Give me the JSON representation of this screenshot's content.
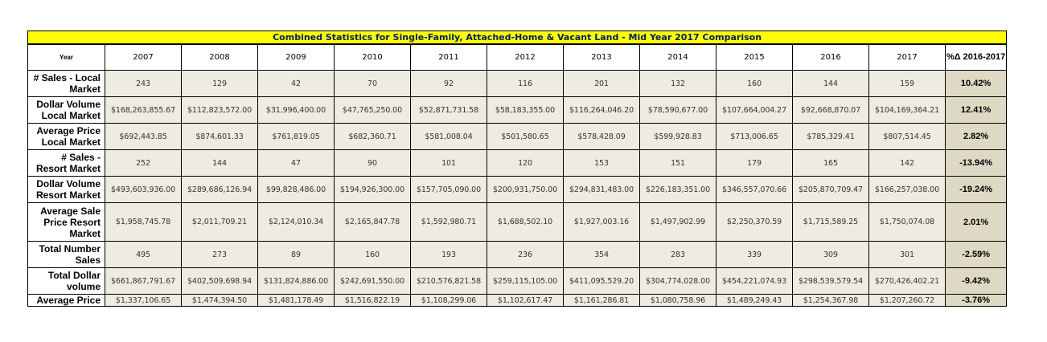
{
  "title": "Combined Statistics for Single-Family, Attached-Home & Vacant Land - Mid Year 2017 Comparison",
  "header": {
    "row_label": "Year",
    "years": [
      "2007",
      "2008",
      "2009",
      "2010",
      "2011",
      "2012",
      "2013",
      "2014",
      "2015",
      "2016",
      "2017"
    ],
    "change_label": "%Δ 2016-2017"
  },
  "rows": [
    {
      "label": "# Sales - Local Market",
      "values": [
        "243",
        "129",
        "42",
        "70",
        "92",
        "116",
        "201",
        "132",
        "160",
        "144",
        "159"
      ],
      "change": "10.42%"
    },
    {
      "label": "Dollar Volume Local Market",
      "values": [
        "$168,263,855.67",
        "$112,823,572.00",
        "$31,996,400.00",
        "$47,765,250.00",
        "$52,871,731.58",
        "$58,183,355.00",
        "$116,264,046.20",
        "$78,590,677.00",
        "$107,664,004.27",
        "$92,668,870.07",
        "$104,169,364.21"
      ],
      "change": "12.41%"
    },
    {
      "label": "Average Price Local Market",
      "values": [
        "$692,443.85",
        "$874,601.33",
        "$761,819.05",
        "$682,360.71",
        "$581,008.04",
        "$501,580.65",
        "$578,428.09",
        "$599,928.83",
        "$713,006.65",
        "$785,329.41",
        "$807,514.45"
      ],
      "change": "2.82%"
    },
    {
      "label": "# Sales - Resort Market",
      "values": [
        "252",
        "144",
        "47",
        "90",
        "101",
        "120",
        "153",
        "151",
        "179",
        "165",
        "142"
      ],
      "change": "-13.94%"
    },
    {
      "label": "Dollar Volume Resort Market",
      "values": [
        "$493,603,936.00",
        "$289,686,126.94",
        "$99,828,486.00",
        "$194,926,300.00",
        "$157,705,090.00",
        "$200,931,750.00",
        "$294,831,483.00",
        "$226,183,351.00",
        "$346,557,070.66",
        "$205,870,709.47",
        "$166,257,038.00"
      ],
      "change": "-19.24%"
    },
    {
      "label": "Average Sale Price Resort Market",
      "values": [
        "$1,958,745.78",
        "$2,011,709.21",
        "$2,124,010.34",
        "$2,165,847.78",
        "$1,592,980.71",
        "$1,688,502.10",
        "$1,927,003.16",
        "$1,497,902.99",
        "$2,250,370.59",
        "$1,715,589.25",
        "$1,750,074.08"
      ],
      "change": "2.01%"
    },
    {
      "label": "Total Number Sales",
      "values": [
        "495",
        "273",
        "89",
        "160",
        "193",
        "236",
        "354",
        "283",
        "339",
        "309",
        "301"
      ],
      "change": "-2.59%"
    },
    {
      "label": "Total Dollar volume",
      "values": [
        "$661,867,791.67",
        "$402,509,698.94",
        "$131,824,886.00",
        "$242,691,550.00",
        "$210,576,821.58",
        "$259,115,105.00",
        "$411,095,529.20",
        "$304,774,028.00",
        "$454,221,074.93",
        "$298,539,579.54",
        "$270,426,402.21"
      ],
      "change": "-9.42%"
    },
    {
      "label": "Average Price",
      "values": [
        "$1,337,106.65",
        "$1,474,394.50",
        "$1,481,178.49",
        "$1,516,822.19",
        "$1,108,299.06",
        "$1,102,617.47",
        "$1,161,286.81",
        "$1,080,758.96",
        "$1,489,249.43",
        "$1,254,367.98",
        "$1,207,260.72"
      ],
      "change": "-3.76%"
    }
  ]
}
